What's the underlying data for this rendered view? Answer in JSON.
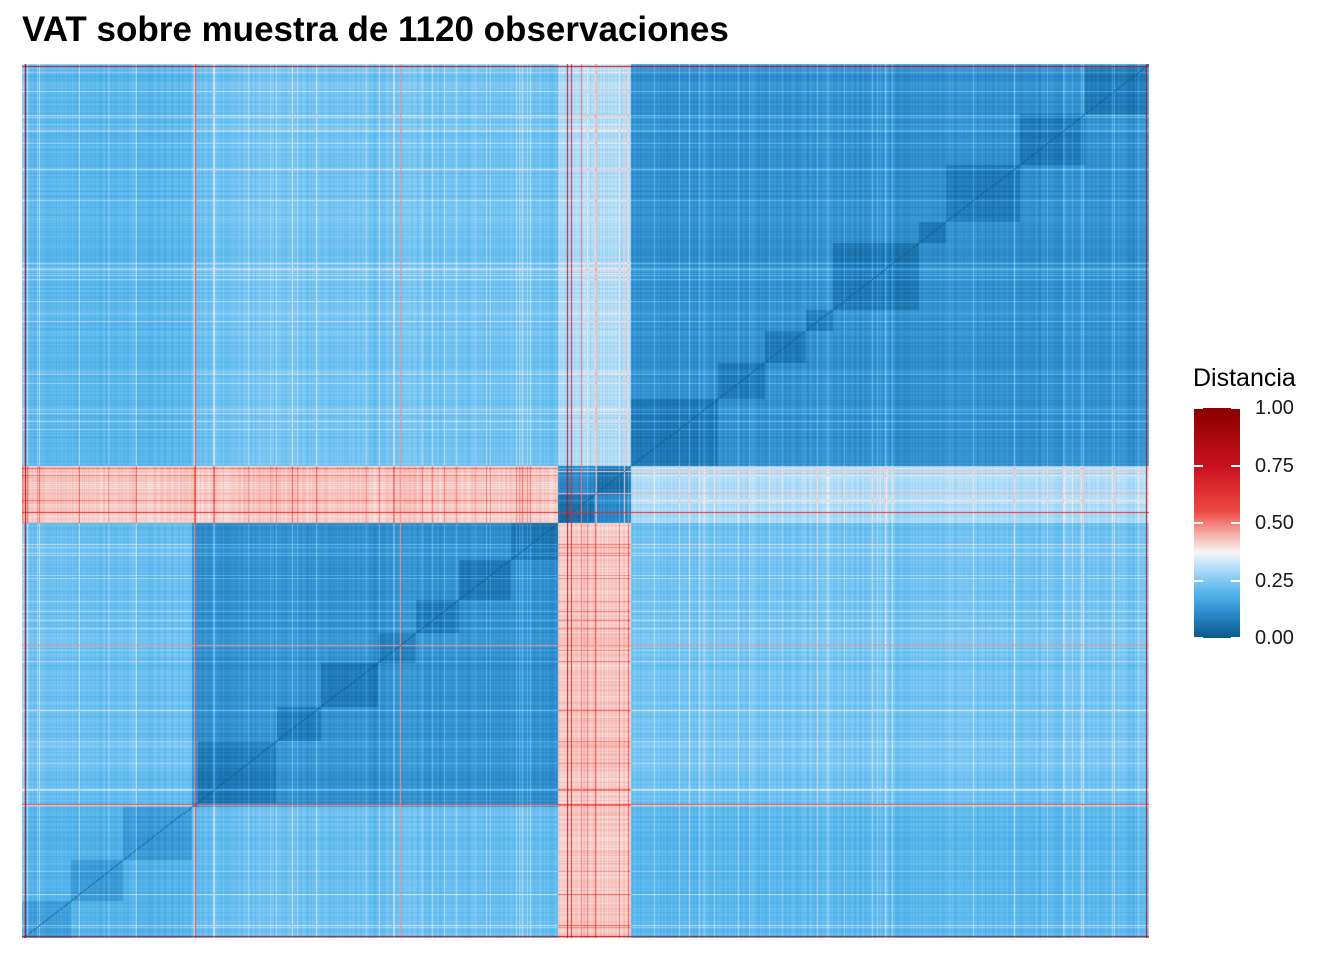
{
  "chart_data": {
    "type": "heatmap",
    "title": "VAT sobre muestra de 1120 observaciones",
    "xlabel": "",
    "ylabel": "",
    "n_observations": 1120,
    "value_range": [
      0,
      1
    ],
    "grid": false,
    "legend": {
      "title": "Distancia",
      "placement": "right",
      "ticks": [
        {
          "value": 1.0,
          "label": "1.00"
        },
        {
          "value": 0.75,
          "label": "0.75"
        },
        {
          "value": 0.5,
          "label": "0.50"
        },
        {
          "value": 0.25,
          "label": "0.25"
        },
        {
          "value": 0.0,
          "label": "0.00"
        }
      ]
    },
    "colorscale": [
      {
        "value": 0.0,
        "color": "#0a5a8c"
      },
      {
        "value": 0.1,
        "color": "#2b88c9"
      },
      {
        "value": 0.2,
        "color": "#58b8ee"
      },
      {
        "value": 0.3,
        "color": "#aedcf8"
      },
      {
        "value": 0.37,
        "color": "#f6f6f6"
      },
      {
        "value": 0.45,
        "color": "#f7b0a8"
      },
      {
        "value": 0.55,
        "color": "#ef4a44"
      },
      {
        "value": 0.75,
        "color": "#c9111e"
      },
      {
        "value": 1.0,
        "color": "#8b0000"
      }
    ],
    "clusters": [
      {
        "start": 0,
        "end": 168,
        "within_distance": 0.14
      },
      {
        "start": 168,
        "end": 532,
        "within_distance": 0.07
      },
      {
        "start": 532,
        "end": 605,
        "within_distance": 0.05
      },
      {
        "start": 605,
        "end": 1120,
        "within_distance": 0.07
      }
    ],
    "between_cluster_distance": [
      [
        0.14,
        0.22,
        0.42,
        0.2
      ],
      [
        0.22,
        0.07,
        0.42,
        0.23
      ],
      [
        0.42,
        0.42,
        0.05,
        0.3
      ],
      [
        0.2,
        0.23,
        0.3,
        0.07
      ]
    ],
    "outlier_observations": [
      {
        "index": 2,
        "distance": 0.85
      },
      {
        "index": 171,
        "distance": 0.55
      },
      {
        "index": 375,
        "distance": 0.48
      },
      {
        "index": 541,
        "distance": 0.75
      },
      {
        "index": 545,
        "distance": 0.65
      },
      {
        "index": 555,
        "distance": 0.5
      },
      {
        "index": 570,
        "distance": 0.45
      },
      {
        "index": 598,
        "distance": 0.42
      },
      {
        "index": 1117,
        "distance": 0.8
      }
    ]
  }
}
